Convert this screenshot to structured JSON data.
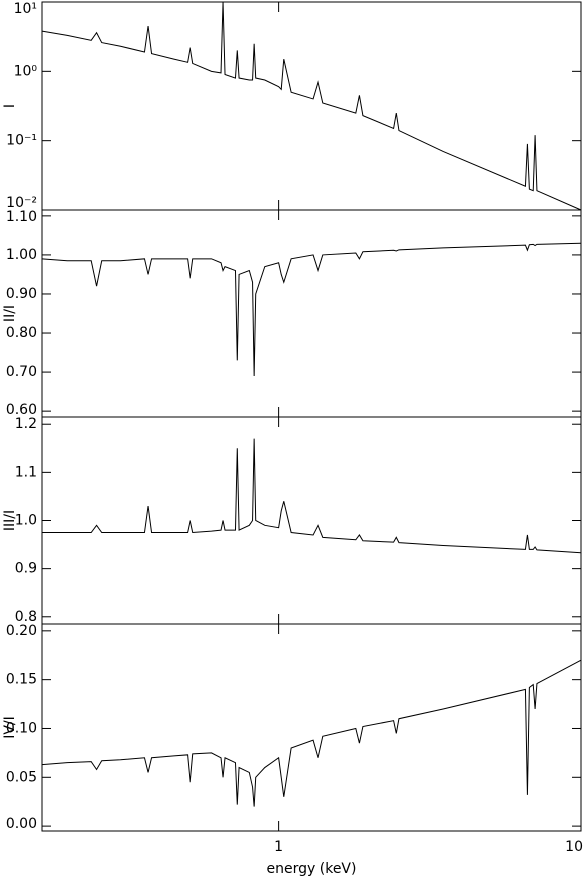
{
  "chart_data": [
    {
      "type": "line",
      "ylabel": "I",
      "log_y": true,
      "xlim": [
        0.165,
        10
      ],
      "ylim": [
        0.01,
        10
      ],
      "yticks": [
        {
          "value": 10,
          "label": "10¹"
        },
        {
          "value": 1,
          "label": "10⁰"
        },
        {
          "value": 0.1,
          "label": "10⁻¹"
        },
        {
          "value": 0.01,
          "label": "10⁻²"
        }
      ],
      "x": [
        0.165,
        0.2,
        0.24,
        0.25,
        0.26,
        0.3,
        0.36,
        0.37,
        0.38,
        0.45,
        0.5,
        0.51,
        0.52,
        0.6,
        0.645,
        0.655,
        0.665,
        0.72,
        0.73,
        0.74,
        0.8,
        0.82,
        0.83,
        0.84,
        0.9,
        1.0,
        1.02,
        1.04,
        1.1,
        1.3,
        1.35,
        1.4,
        1.8,
        1.85,
        1.9,
        2.4,
        2.45,
        2.5,
        3.5,
        6.55,
        6.65,
        6.75,
        6.95,
        7.05,
        7.15,
        10
      ],
      "series": [
        {
          "color": "#000000",
          "values": [
            3.8,
            3.3,
            2.8,
            3.6,
            2.6,
            2.3,
            1.9,
            4.5,
            1.8,
            1.5,
            1.35,
            2.2,
            1.3,
            1.0,
            0.95,
            10,
            0.9,
            0.8,
            2.0,
            0.8,
            0.75,
            0.75,
            2.5,
            0.8,
            0.75,
            0.6,
            0.55,
            1.5,
            0.5,
            0.4,
            0.7,
            0.35,
            0.25,
            0.45,
            0.23,
            0.15,
            0.25,
            0.14,
            0.07,
            0.022,
            0.09,
            0.02,
            0.019,
            0.12,
            0.019,
            0.01
          ]
        }
      ]
    },
    {
      "type": "line",
      "ylabel": "II/I",
      "log_y": false,
      "xlim": [
        0.165,
        10
      ],
      "ylim": [
        0.585,
        1.115
      ],
      "yticks": [
        {
          "value": 0.6,
          "label": "0.60"
        },
        {
          "value": 0.7,
          "label": "0.70"
        },
        {
          "value": 0.8,
          "label": "0.80"
        },
        {
          "value": 0.9,
          "label": "0.90"
        },
        {
          "value": 1,
          "label": "1.00"
        },
        {
          "value": 1.1,
          "label": "1.10"
        }
      ],
      "x": [
        0.165,
        0.2,
        0.24,
        0.25,
        0.26,
        0.3,
        0.36,
        0.37,
        0.38,
        0.45,
        0.5,
        0.51,
        0.52,
        0.6,
        0.645,
        0.655,
        0.665,
        0.72,
        0.73,
        0.74,
        0.8,
        0.82,
        0.83,
        0.84,
        0.9,
        1.0,
        1.02,
        1.04,
        1.1,
        1.3,
        1.35,
        1.4,
        1.8,
        1.85,
        1.9,
        2.4,
        2.45,
        2.5,
        3.5,
        6.55,
        6.65,
        6.75,
        6.95,
        7.05,
        7.15,
        10
      ],
      "series": [
        {
          "color": "#000000",
          "values": [
            0.99,
            0.985,
            0.985,
            0.92,
            0.985,
            0.985,
            0.99,
            0.95,
            0.99,
            0.99,
            0.99,
            0.94,
            0.99,
            0.99,
            0.98,
            0.96,
            0.97,
            0.96,
            0.73,
            0.95,
            0.96,
            0.93,
            0.69,
            0.9,
            0.97,
            0.98,
            0.95,
            0.93,
            0.99,
            1.0,
            0.96,
            1.0,
            1.005,
            0.99,
            1.008,
            1.012,
            1.01,
            1.013,
            1.018,
            1.025,
            1.012,
            1.026,
            1.027,
            1.024,
            1.027,
            1.03
          ]
        }
      ]
    },
    {
      "type": "line",
      "ylabel": "III/I",
      "log_y": false,
      "xlim": [
        0.165,
        10
      ],
      "ylim": [
        0.785,
        1.215
      ],
      "yticks": [
        0.8,
        0.9,
        {
          "value": 1,
          "label": "1.0"
        },
        1.1,
        1.2
      ],
      "x": [
        0.165,
        0.2,
        0.24,
        0.25,
        0.26,
        0.3,
        0.36,
        0.37,
        0.38,
        0.45,
        0.5,
        0.51,
        0.52,
        0.6,
        0.645,
        0.655,
        0.665,
        0.72,
        0.73,
        0.74,
        0.8,
        0.82,
        0.83,
        0.84,
        0.9,
        1.0,
        1.02,
        1.04,
        1.1,
        1.3,
        1.35,
        1.4,
        1.8,
        1.85,
        1.9,
        2.4,
        2.45,
        2.5,
        3.5,
        6.55,
        6.65,
        6.75,
        6.95,
        7.05,
        7.15,
        10
      ],
      "series": [
        {
          "color": "#000000",
          "values": [
            0.975,
            0.975,
            0.975,
            0.99,
            0.975,
            0.975,
            0.975,
            1.03,
            0.975,
            0.975,
            0.975,
            1.0,
            0.975,
            0.978,
            0.98,
            1.0,
            0.98,
            0.98,
            1.15,
            0.98,
            0.99,
            1.0,
            1.17,
            1.0,
            0.99,
            0.985,
            1.02,
            1.04,
            0.975,
            0.97,
            0.99,
            0.965,
            0.96,
            0.97,
            0.958,
            0.955,
            0.965,
            0.954,
            0.948,
            0.94,
            0.97,
            0.94,
            0.94,
            0.945,
            0.939,
            0.933
          ]
        }
      ]
    },
    {
      "type": "line",
      "ylabel": "IV/I",
      "xlabel": "energy (keV)",
      "log_y": false,
      "xlim": [
        0.165,
        10
      ],
      "ylim": [
        -0.005,
        0.207
      ],
      "xticks": [
        1,
        10
      ],
      "yticks": [
        {
          "value": 0,
          "label": "0.00"
        },
        0.05,
        {
          "value": 0.1,
          "label": "0.10"
        },
        0.15,
        {
          "value": 0.2,
          "label": "0.20"
        }
      ],
      "x": [
        0.165,
        0.2,
        0.24,
        0.25,
        0.26,
        0.3,
        0.36,
        0.37,
        0.38,
        0.45,
        0.5,
        0.51,
        0.52,
        0.6,
        0.645,
        0.655,
        0.665,
        0.72,
        0.73,
        0.74,
        0.8,
        0.82,
        0.83,
        0.84,
        0.9,
        1.0,
        1.02,
        1.04,
        1.1,
        1.3,
        1.35,
        1.4,
        1.8,
        1.85,
        1.9,
        2.4,
        2.45,
        2.5,
        3.5,
        6.55,
        6.65,
        6.75,
        6.95,
        7.05,
        7.15,
        10
      ],
      "series": [
        {
          "color": "#000000",
          "values": [
            0.063,
            0.065,
            0.066,
            0.058,
            0.067,
            0.068,
            0.07,
            0.055,
            0.07,
            0.072,
            0.073,
            0.045,
            0.074,
            0.075,
            0.07,
            0.05,
            0.07,
            0.065,
            0.022,
            0.06,
            0.055,
            0.04,
            0.02,
            0.05,
            0.06,
            0.07,
            0.05,
            0.03,
            0.08,
            0.088,
            0.07,
            0.092,
            0.1,
            0.085,
            0.102,
            0.108,
            0.095,
            0.11,
            0.12,
            0.14,
            0.032,
            0.142,
            0.145,
            0.12,
            0.146,
            0.17
          ]
        }
      ]
    }
  ]
}
